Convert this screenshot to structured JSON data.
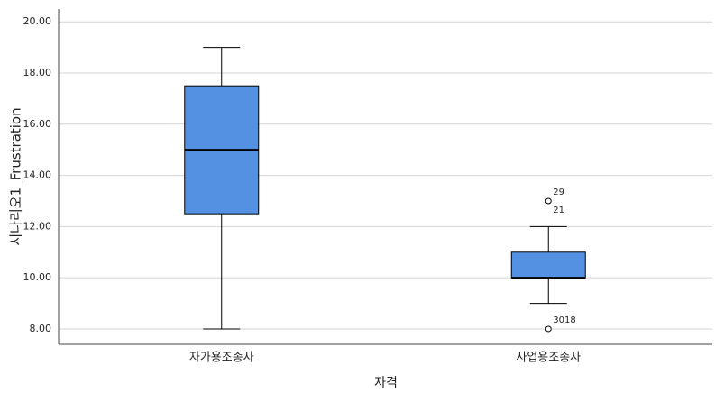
{
  "chart_data": {
    "type": "box",
    "y_label": "시나리오1_Frustration",
    "x_label": "자격",
    "categories": [
      "자가용조종사",
      "사업용조종사"
    ],
    "boxes": [
      {
        "min": 8,
        "q1": 12.5,
        "median": 15,
        "q3": 17.5,
        "max": 19,
        "outliers": []
      },
      {
        "min": 9,
        "q1": 10,
        "median": 10,
        "q3": 11,
        "max": 12,
        "outliers": [
          {
            "value": 13,
            "labels": [
              "29",
              "21"
            ]
          },
          {
            "value": 8,
            "labels": [
              "3018"
            ]
          }
        ]
      }
    ],
    "color": "#5591e2",
    "ylim": [
      7.4,
      20.5
    ],
    "yticks": [
      {
        "value": 8,
        "label": "8.00"
      },
      {
        "value": 10,
        "label": "10.00"
      },
      {
        "value": 12,
        "label": "12.00"
      },
      {
        "value": 14,
        "label": "14.00"
      },
      {
        "value": 16,
        "label": "16.00"
      },
      {
        "value": 18,
        "label": "18.00"
      },
      {
        "value": 20,
        "label": "20.00"
      }
    ],
    "grid": true
  }
}
